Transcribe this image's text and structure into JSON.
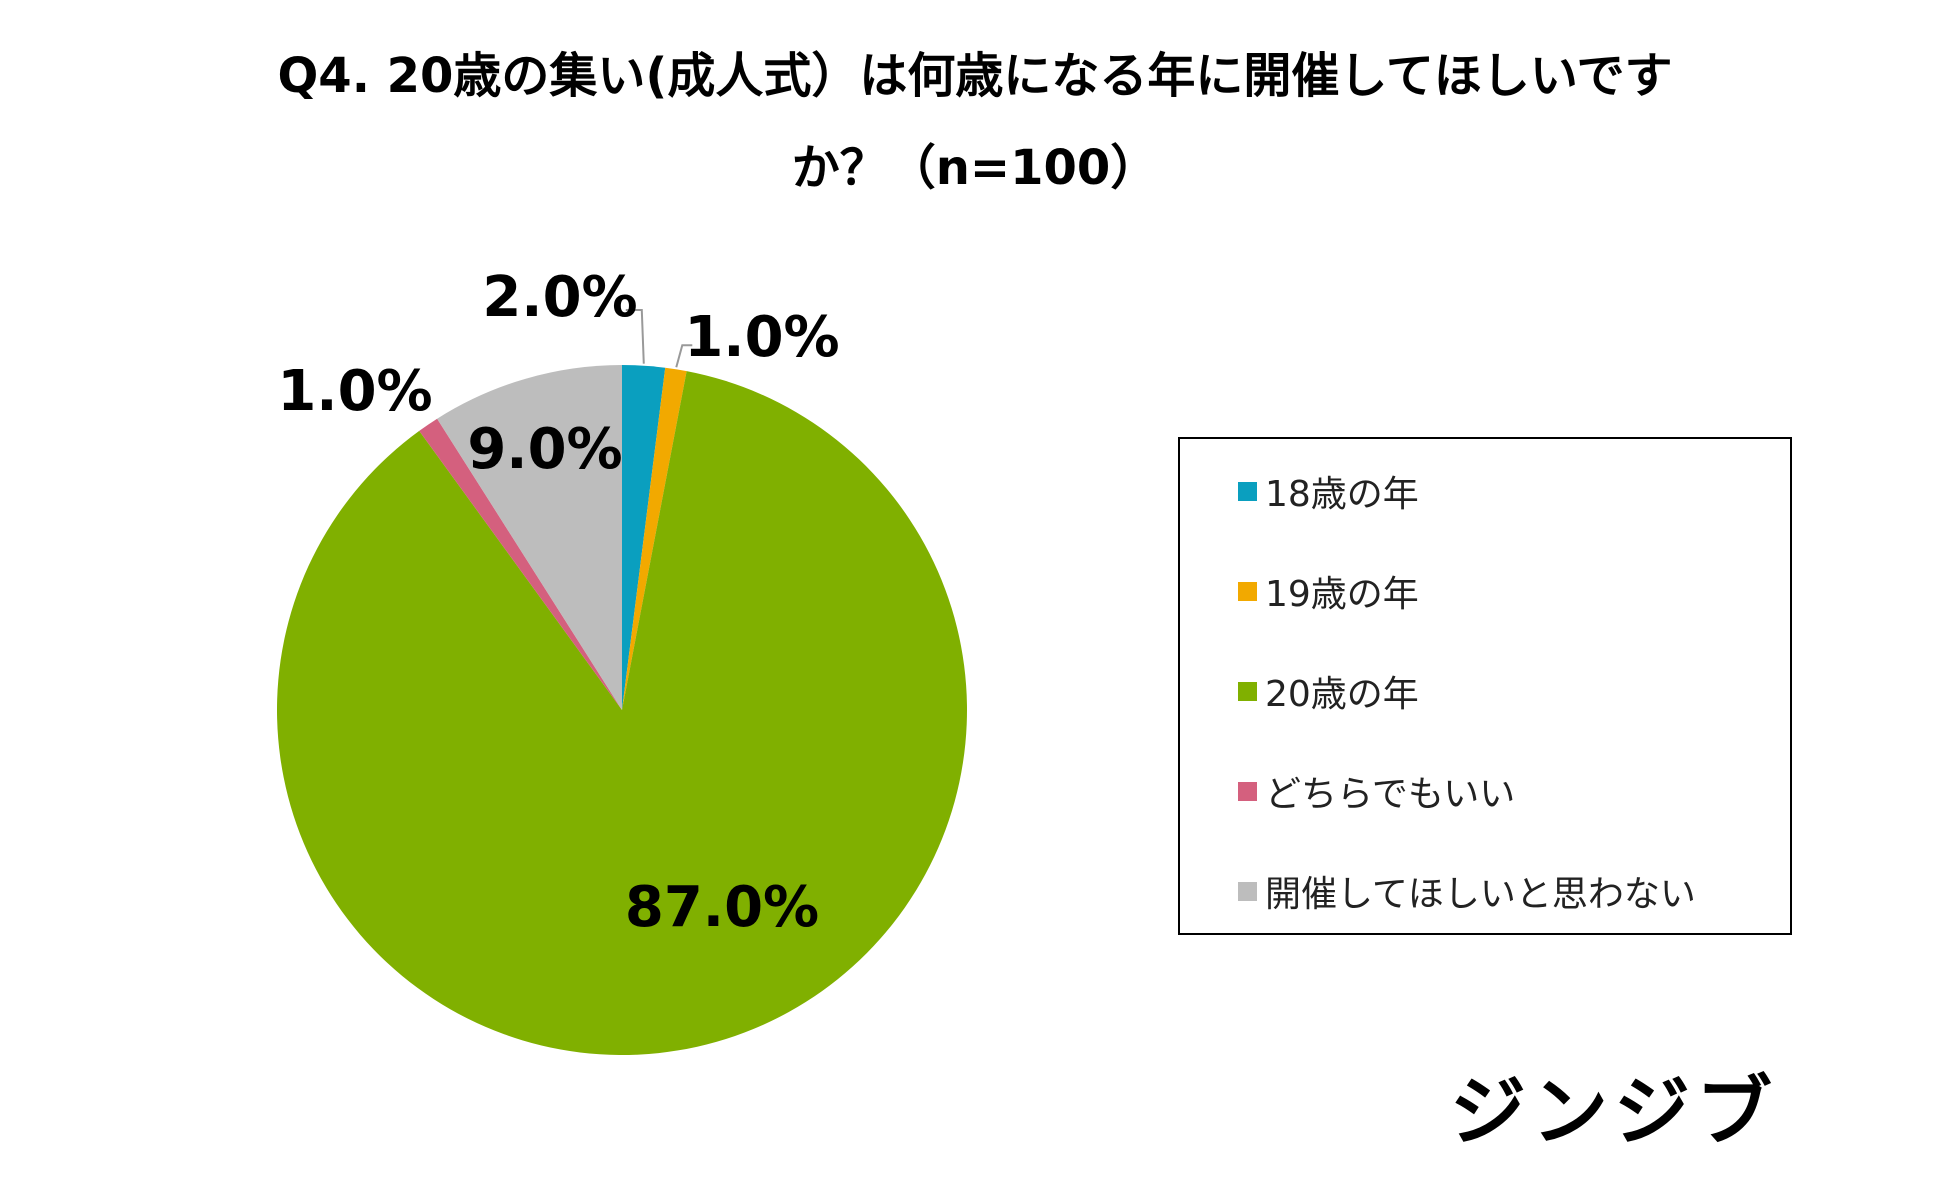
{
  "chart_data": {
    "type": "pie",
    "title": [
      "Q4. 20歳の集い(成人式）は何歳になる年に開催してほしいです",
      "か？（n=100）"
    ],
    "slices": [
      {
        "label": "18歳の年",
        "value": 2.0,
        "display": "2.0%",
        "color": "#0a9fbf"
      },
      {
        "label": "19歳の年",
        "value": 1.0,
        "display": "1.0%",
        "color": "#f2a900"
      },
      {
        "label": "20歳の年",
        "value": 87.0,
        "display": "87.0%",
        "color": "#80b000"
      },
      {
        "label": "どちらでもいい",
        "value": 1.0,
        "display": "1.0%",
        "color": "#d4607e"
      },
      {
        "label": "開催してほしいと思わない",
        "value": 9.0,
        "display": "9.0%",
        "color": "#bdbdbd"
      }
    ],
    "start": "12 o'clock",
    "direction": "clockwise",
    "legend_position": "right"
  },
  "brand": "ジンジブ"
}
